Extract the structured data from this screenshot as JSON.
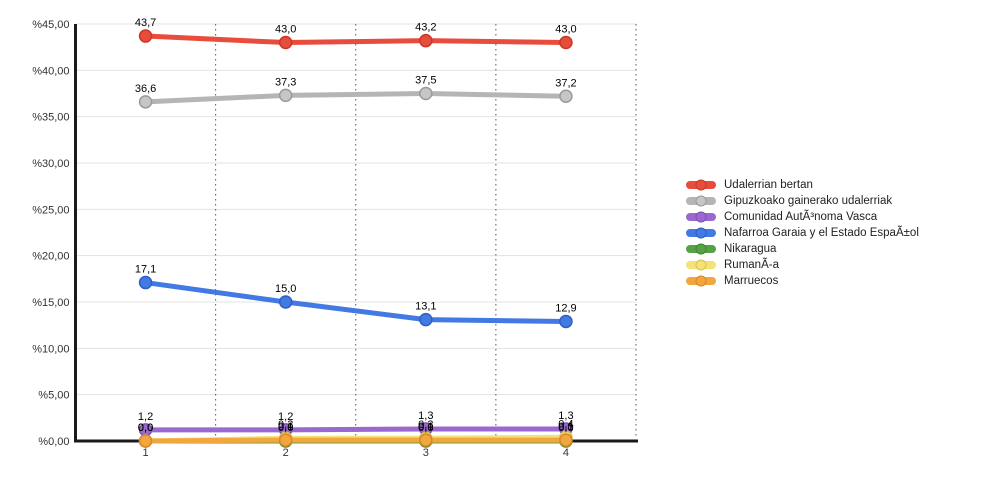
{
  "page": {
    "background": "#ffffff",
    "axis_color": "#1a1a1a",
    "gridline_color": "#e3e3e3",
    "separator_color": "#555555"
  },
  "chart_data": {
    "type": "line",
    "title": "",
    "xlabel": "",
    "ylabel": "",
    "ylim": [
      0,
      45
    ],
    "grid": "horizontal solid every 5, vertical dotted category separators",
    "legend_position": "right",
    "x": [
      1,
      2,
      3,
      4
    ],
    "x_tick_labels": [
      "1",
      "2",
      "3",
      "4"
    ],
    "y_ticks": [
      {
        "label": "%45,00",
        "value": 45
      },
      {
        "label": "%40,00",
        "value": 40
      },
      {
        "label": "%35,00",
        "value": 35
      },
      {
        "label": "%30,00",
        "value": 30
      },
      {
        "label": "%25,00",
        "value": 25
      },
      {
        "label": "%20,00",
        "value": 20
      },
      {
        "label": "%15,00",
        "value": 15
      },
      {
        "label": "%10,00",
        "value": 10
      },
      {
        "label": "%5,00",
        "value": 5
      },
      {
        "label": "%0,00",
        "value": 0
      }
    ],
    "series": [
      {
        "name": "Udalerrian bertan",
        "color": "#e74c3c",
        "point_fill": "#e74c3c",
        "point_stroke": "#c63a26",
        "values": [
          43.7,
          43.0,
          43.2,
          43.0
        ],
        "labels": [
          "43,7",
          "43,0",
          "43,2",
          "43,0"
        ]
      },
      {
        "name": "Gipuzkoako gainerako udalerriak",
        "color": "#b5b5b5",
        "point_fill": "#c6c6c6",
        "point_stroke": "#9a9a9a",
        "values": [
          36.6,
          37.3,
          37.5,
          37.2
        ],
        "labels": [
          "36,6",
          "37,3",
          "37,5",
          "37,2"
        ]
      },
      {
        "name": "Comunidad AutÃ³noma Vasca",
        "color": "#9b68d0",
        "point_fill": "#9b68d0",
        "point_stroke": "#7f4fb8",
        "values": [
          1.2,
          1.2,
          1.3,
          1.3
        ],
        "labels": [
          "1,2",
          "1,2",
          "1,3",
          "1,3"
        ]
      },
      {
        "name": "Nafarroa Garaia y el Estado EspaÃ±ol",
        "color": "#4379e2",
        "point_fill": "#4379e2",
        "point_stroke": "#2d5fc4",
        "values": [
          17.1,
          15.0,
          13.1,
          12.9
        ],
        "labels": [
          "17,1",
          "15,0",
          "13,1",
          "12,9"
        ]
      },
      {
        "name": "Nikaragua",
        "color": "#55a244",
        "point_fill": "#55a244",
        "point_stroke": "#3f8533",
        "values": [
          0.0,
          0.0,
          0.0,
          0.0
        ],
        "labels": [
          "0,0",
          "0,0",
          "0,0",
          "0,0"
        ]
      },
      {
        "name": "RumanÃ-a",
        "color": "#f3e377",
        "point_fill": "#f3e377",
        "point_stroke": "#d9c14e",
        "values": [
          0.0,
          0.3,
          0.3,
          0.4
        ],
        "labels": [
          "0,0",
          "0,3",
          "0,3",
          "0,4"
        ]
      },
      {
        "name": "Marruecos",
        "color": "#f2a63e",
        "point_fill": "#f2a63e",
        "point_stroke": "#d8872a",
        "values": [
          0.0,
          0.1,
          0.1,
          0.1
        ],
        "labels": [
          "0,0",
          "0,1",
          "0,1",
          "0,1"
        ]
      }
    ]
  }
}
